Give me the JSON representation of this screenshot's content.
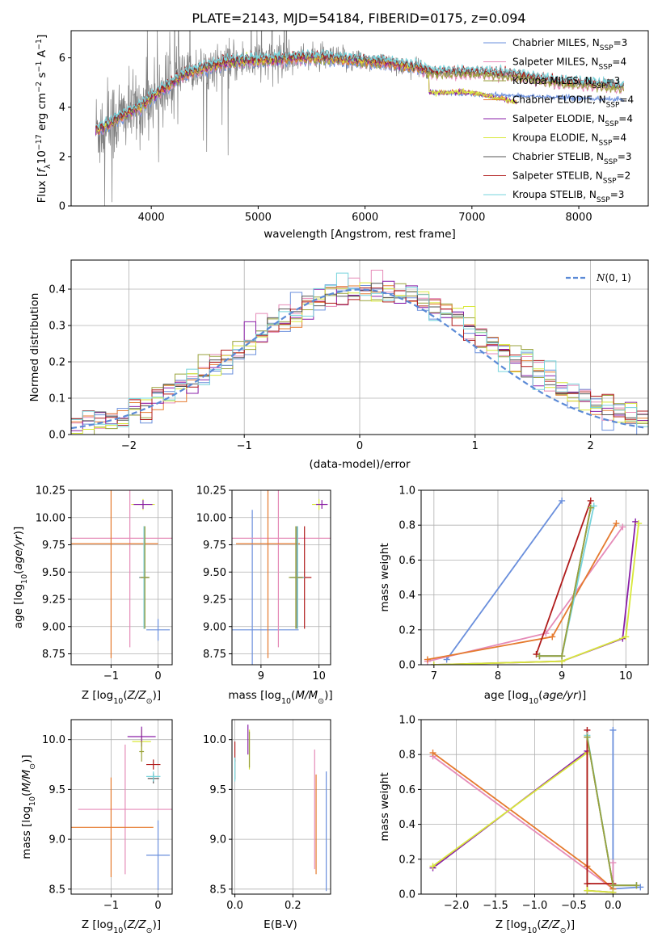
{
  "figure_title": "PLATE=2143, MJD=54184, FIBERID=0175, z=0.094",
  "colors": {
    "Chabrier MILES": "#6a8fdc",
    "Salpeter MILES": "#e58bb8",
    "Kroupa MILES": "#99a23c",
    "Chabrier ELODIE": "#e57a2e",
    "Salpeter ELODIE": "#8a1fa8",
    "Kroupa ELODIE": "#d8e83a",
    "Chabrier STELIB": "#555555",
    "Salpeter STELIB": "#b01b1b",
    "Kroupa STELIB": "#77d4dc",
    "observed_spectrum": "#808080"
  },
  "chart_data": [
    {
      "id": "spectrum",
      "type": "line",
      "xlabel": "wavelength [Angstrom, rest frame]",
      "ylabel": "Flux [fλ10⁻¹⁷ erg cm⁻² s⁻¹ A⁻¹]",
      "xlim": [
        3250,
        8650
      ],
      "ylim": [
        0,
        7.1
      ],
      "xticks": [
        4000,
        5000,
        6000,
        7000,
        8000
      ],
      "yticks": [
        0,
        2,
        4,
        6
      ],
      "legend_position": "top-right",
      "legend": [
        "Chabrier MILES, N_SSP=3",
        "Salpeter MILES, N_SSP=4",
        "Kroupa MILES, N_SSP=3",
        "Chabrier ELODIE, N_SSP=4",
        "Salpeter ELODIE, N_SSP=4",
        "Kroupa ELODIE, N_SSP=4",
        "Chabrier STELIB, N_SSP=3",
        "Salpeter STELIB, N_SSP=2",
        "Kroupa STELIB, N_SSP=3"
      ],
      "legend_labels": [
        {
          "pre": "Chabrier MILES, N",
          "sub": "SSP",
          "post": "=3"
        },
        {
          "pre": "Salpeter MILES, N",
          "sub": "SSP",
          "post": "=4"
        },
        {
          "pre": "Kroupa MILES, N",
          "sub": "SSP",
          "post": "=3"
        },
        {
          "pre": "Chabrier ELODIE, N",
          "sub": "SSP",
          "post": "=4"
        },
        {
          "pre": "Salpeter ELODIE, N",
          "sub": "SSP",
          "post": "=4"
        },
        {
          "pre": "Kroupa ELODIE, N",
          "sub": "SSP",
          "post": "=4"
        },
        {
          "pre": "Chabrier STELIB, N",
          "sub": "SSP",
          "post": "=3"
        },
        {
          "pre": "Salpeter STELIB, N",
          "sub": "SSP",
          "post": "=2"
        },
        {
          "pre": "Kroupa STELIB, N",
          "sub": "SSP",
          "post": "=3"
        }
      ],
      "model_shape": {
        "x": [
          3500,
          3600,
          3700,
          3800,
          3900,
          4000,
          4100,
          4200,
          4300,
          4500,
          4700,
          4900,
          5100,
          5300,
          5600,
          5900,
          6200,
          6500,
          6600,
          7000,
          7400,
          7800,
          8200,
          8400
        ],
        "y": [
          3.1,
          3.3,
          3.6,
          3.8,
          4.0,
          4.4,
          4.7,
          5.0,
          5.3,
          5.6,
          5.8,
          5.9,
          5.9,
          6.0,
          6.0,
          5.9,
          5.8,
          5.6,
          5.4,
          5.4,
          5.3,
          5.0,
          4.9,
          4.8
        ]
      },
      "elodie_shape": {
        "x": [
          6600,
          7000,
          7420
        ],
        "y": [
          4.6,
          4.6,
          4.2
        ]
      }
    },
    {
      "id": "residuals",
      "type": "step",
      "xlabel": "(data-model)/error",
      "ylabel": "Normed distribution",
      "xlim": [
        -2.5,
        2.5
      ],
      "ylim": [
        0,
        0.48
      ],
      "xticks": [
        -2,
        -1,
        0,
        1,
        2
      ],
      "yticks": [
        0.0,
        0.1,
        0.2,
        0.3,
        0.4
      ],
      "grid": true,
      "legend_position": "top-right",
      "reference_curve": {
        "label": "N(0,1)",
        "mu": 0,
        "sigma": 1
      }
    },
    {
      "id": "age_vs_Z",
      "type": "errorbar",
      "xlabel": "Z [log10(Z/Z⊙)]",
      "ylabel": "age  [log10(age/yr)]",
      "xlim": [
        -1.85,
        0.3
      ],
      "ylim": [
        8.65,
        10.25
      ],
      "xticks": [
        -1,
        0
      ],
      "yticks": [
        8.75,
        9.0,
        9.25,
        9.5,
        9.75,
        10.0,
        10.25
      ],
      "grid": true,
      "points": [
        {
          "series": "Chabrier MILES",
          "x": 0.0,
          "y": 8.97,
          "xerr": 0.25,
          "yerr": 0.1
        },
        {
          "series": "Salpeter MILES",
          "x": -0.6,
          "y": 9.81,
          "xerr": 1.25,
          "yerr": 1.0
        },
        {
          "series": "Chabrier ELODIE",
          "x": -1.0,
          "y": 9.76,
          "xerr": 1.0,
          "yerr": 1.05
        },
        {
          "series": "Kroupa ELODIE",
          "x": -0.32,
          "y": 10.12,
          "xerr": 0.25,
          "yerr": 0.05
        },
        {
          "series": "Salpeter ELODIE",
          "x": -0.32,
          "y": 10.12,
          "xerr": 0.2,
          "yerr": 0.04
        },
        {
          "series": "Chabrier STELIB",
          "x": -0.3,
          "y": 9.45,
          "xerr": 0.1,
          "yerr": 0.47
        },
        {
          "series": "Salpeter STELIB",
          "x": -0.3,
          "y": 9.45,
          "xerr": 0.1,
          "yerr": 0.47
        },
        {
          "series": "Kroupa STELIB",
          "x": -0.3,
          "y": 9.45,
          "xerr": 0.1,
          "yerr": 0.47
        },
        {
          "series": "Kroupa MILES",
          "x": -0.28,
          "y": 9.45,
          "xerr": 0.1,
          "yerr": 0.47
        }
      ]
    },
    {
      "id": "age_vs_mass",
      "type": "errorbar",
      "xlabel": "mass [log10(M/M⊙)]",
      "ylabel": "",
      "xlim": [
        8.5,
        10.2
      ],
      "ylim": [
        8.65,
        10.25
      ],
      "xticks": [
        9,
        10
      ],
      "yticks": [
        8.75,
        9.0,
        9.25,
        9.5,
        9.75,
        10.0,
        10.25
      ],
      "grid": true,
      "points": [
        {
          "series": "Chabrier MILES",
          "x": 8.85,
          "y": 8.97,
          "xerr": 0.8,
          "yerr": 1.1
        },
        {
          "series": "Salpeter MILES",
          "x": 9.3,
          "y": 9.81,
          "xerr": 0.9,
          "yerr": 1.0
        },
        {
          "series": "Chabrier ELODIE",
          "x": 9.12,
          "y": 9.76,
          "xerr": 0.55,
          "yerr": 1.05
        },
        {
          "series": "Kroupa ELODIE",
          "x": 10.0,
          "y": 10.12,
          "xerr": 0.12,
          "yerr": 0.05
        },
        {
          "series": "Salpeter ELODIE",
          "x": 10.05,
          "y": 10.12,
          "xerr": 0.1,
          "yerr": 0.04
        },
        {
          "series": "Chabrier STELIB",
          "x": 9.62,
          "y": 9.45,
          "xerr": 0.12,
          "yerr": 0.47
        },
        {
          "series": "Salpeter STELIB",
          "x": 9.75,
          "y": 9.45,
          "xerr": 0.12,
          "yerr": 0.47
        },
        {
          "series": "Kroupa STELIB",
          "x": 9.63,
          "y": 9.45,
          "xerr": 0.12,
          "yerr": 0.47
        },
        {
          "series": "Kroupa MILES",
          "x": 9.6,
          "y": 9.45,
          "xerr": 0.12,
          "yerr": 0.47
        }
      ]
    },
    {
      "id": "massweight_vs_age",
      "type": "line",
      "xlabel": "age  [log10(age/yr)]",
      "ylabel": "mass weight",
      "xlim": [
        6.8,
        10.35
      ],
      "ylim": [
        0,
        1.0
      ],
      "xticks": [
        7,
        8,
        9,
        10
      ],
      "yticks": [
        0.0,
        0.2,
        0.4,
        0.6,
        0.8,
        1.0
      ],
      "grid": true,
      "series": [
        {
          "name": "Chabrier MILES",
          "x": [
            7.2,
            9.0
          ],
          "y": [
            0.03,
            0.94
          ]
        },
        {
          "name": "Salpeter MILES",
          "x": [
            6.9,
            8.75,
            9.95
          ],
          "y": [
            0.02,
            0.18,
            0.79
          ]
        },
        {
          "name": "Chabrier ELODIE",
          "x": [
            6.9,
            8.85,
            9.85
          ],
          "y": [
            0.03,
            0.16,
            0.81
          ]
        },
        {
          "name": "Salpeter ELODIE",
          "x": [
            7.0,
            9.0,
            9.95,
            10.15
          ],
          "y": [
            0.0,
            0.02,
            0.15,
            0.82
          ]
        },
        {
          "name": "Kroupa ELODIE",
          "x": [
            7.0,
            9.0,
            10.0,
            10.2
          ],
          "y": [
            0.0,
            0.02,
            0.16,
            0.81
          ]
        },
        {
          "name": "Chabrier STELIB",
          "x": [
            8.65,
            9.0,
            9.45
          ],
          "y": [
            0.05,
            0.05,
            0.9
          ]
        },
        {
          "name": "Salpeter STELIB",
          "x": [
            8.6,
            9.45
          ],
          "y": [
            0.06,
            0.94
          ]
        },
        {
          "name": "Kroupa STELIB",
          "x": [
            8.65,
            9.0,
            9.5
          ],
          "y": [
            0.05,
            0.05,
            0.91
          ]
        },
        {
          "name": "Kroupa MILES",
          "x": [
            8.65,
            9.0,
            9.45
          ],
          "y": [
            0.05,
            0.05,
            0.9
          ]
        }
      ]
    },
    {
      "id": "mass_vs_Z",
      "type": "errorbar",
      "xlabel": "Z [log10(Z/Z⊙)]",
      "ylabel": "mass [log10(M/M⊙)]",
      "xlim": [
        -1.85,
        0.3
      ],
      "ylim": [
        8.45,
        10.2
      ],
      "xticks": [
        -1,
        0
      ],
      "yticks": [
        8.5,
        9.0,
        9.5,
        10.0
      ],
      "grid": true,
      "points": [
        {
          "series": "Chabrier MILES",
          "x": 0.0,
          "y": 8.84,
          "xerr": 0.25,
          "yerr": 0.35
        },
        {
          "series": "Salpeter MILES",
          "x": -0.7,
          "y": 9.3,
          "xerr": 1.0,
          "yerr": 0.65
        },
        {
          "series": "Chabrier ELODIE",
          "x": -1.0,
          "y": 9.12,
          "xerr": 0.9,
          "yerr": 0.5
        },
        {
          "series": "Kroupa ELODIE",
          "x": -0.35,
          "y": 9.98,
          "xerr": 0.2,
          "yerr": 0.12
        },
        {
          "series": "Salpeter ELODIE",
          "x": -0.35,
          "y": 10.03,
          "xerr": 0.3,
          "yerr": 0.1
        },
        {
          "series": "Chabrier STELIB",
          "x": -0.1,
          "y": 9.61,
          "xerr": 0.12,
          "yerr": 0.05
        },
        {
          "series": "Salpeter STELIB",
          "x": -0.1,
          "y": 9.75,
          "xerr": 0.15,
          "yerr": 0.05
        },
        {
          "series": "Kroupa STELIB",
          "x": -0.1,
          "y": 9.63,
          "xerr": 0.15,
          "yerr": 0.05
        },
        {
          "series": "Kroupa MILES",
          "x": -0.35,
          "y": 9.88,
          "xerr": 0.05,
          "yerr": 0.1
        }
      ]
    },
    {
      "id": "mass_vs_EBV",
      "type": "errorbar",
      "xlabel": "E(B-V)",
      "ylabel": "",
      "xlim": [
        -0.01,
        0.33
      ],
      "ylim": [
        8.45,
        10.2
      ],
      "xticks": [
        0.0,
        0.2
      ],
      "yticks": [
        8.5,
        9.0,
        9.5,
        10.0
      ],
      "grid": true,
      "points": [
        {
          "series": "Chabrier MILES",
          "x": 0.315,
          "y": 9.08,
          "xerr": 0,
          "yerr": 0.6
        },
        {
          "series": "Salpeter MILES",
          "x": 0.275,
          "y": 9.3,
          "xerr": 0,
          "yerr": 0.6
        },
        {
          "series": "Chabrier ELODIE",
          "x": 0.28,
          "y": 9.15,
          "xerr": 0,
          "yerr": 0.5
        },
        {
          "series": "Kroupa ELODIE",
          "x": 0.05,
          "y": 9.9,
          "xerr": 0,
          "yerr": 0.2
        },
        {
          "series": "Salpeter ELODIE",
          "x": 0.045,
          "y": 10.0,
          "xerr": 0,
          "yerr": 0.15
        },
        {
          "series": "Chabrier STELIB",
          "x": 0.0,
          "y": 9.7,
          "xerr": 0,
          "yerr": 0.1
        },
        {
          "series": "Salpeter STELIB",
          "x": 0.0,
          "y": 9.88,
          "xerr": 0,
          "yerr": 0.1
        },
        {
          "series": "Kroupa STELIB",
          "x": 0.0,
          "y": 9.7,
          "xerr": 0,
          "yerr": 0.12
        },
        {
          "series": "Kroupa MILES",
          "x": 0.05,
          "y": 9.9,
          "xerr": 0,
          "yerr": 0.18
        }
      ]
    },
    {
      "id": "massweight_vs_Z",
      "type": "line",
      "xlabel": "Z [log10(Z/Z⊙)]",
      "ylabel": "mass weight",
      "xlim": [
        -2.45,
        0.45
      ],
      "ylim": [
        0,
        1.0
      ],
      "xticks": [
        -2.0,
        -1.5,
        -1.0,
        -0.5,
        0.0
      ],
      "yticks": [
        0.0,
        0.2,
        0.4,
        0.6,
        0.8,
        1.0
      ],
      "grid": true,
      "series": [
        {
          "name": "Chabrier MILES",
          "x": [
            0.0,
            0.0,
            0.35
          ],
          "y": [
            0.94,
            0.03,
            0.04
          ]
        },
        {
          "name": "Salpeter MILES",
          "x": [
            -2.3,
            0.0,
            0.0
          ],
          "y": [
            0.79,
            0.03,
            0.18
          ]
        },
        {
          "name": "Chabrier ELODIE",
          "x": [
            -2.3,
            -0.33,
            0.0
          ],
          "y": [
            0.81,
            0.16,
            0.03
          ]
        },
        {
          "name": "Salpeter ELODIE",
          "x": [
            -2.3,
            -0.33,
            -0.33,
            0.0
          ],
          "y": [
            0.15,
            0.82,
            0.02,
            0.01
          ]
        },
        {
          "name": "Kroupa ELODIE",
          "x": [
            -2.3,
            -0.33,
            -0.33,
            0.0
          ],
          "y": [
            0.16,
            0.81,
            0.02,
            0.01
          ]
        },
        {
          "name": "Chabrier STELIB",
          "x": [
            -0.33,
            0.0,
            0.3
          ],
          "y": [
            0.9,
            0.05,
            0.05
          ]
        },
        {
          "name": "Salpeter STELIB",
          "x": [
            -0.33,
            -0.33,
            0.0
          ],
          "y": [
            0.94,
            0.06,
            0.06
          ]
        },
        {
          "name": "Kroupa STELIB",
          "x": [
            -0.33,
            0.0,
            0.3
          ],
          "y": [
            0.91,
            0.05,
            0.05
          ]
        },
        {
          "name": "Kroupa MILES",
          "x": [
            -0.33,
            0.0,
            0.3
          ],
          "y": [
            0.9,
            0.05,
            0.05
          ]
        }
      ]
    }
  ]
}
